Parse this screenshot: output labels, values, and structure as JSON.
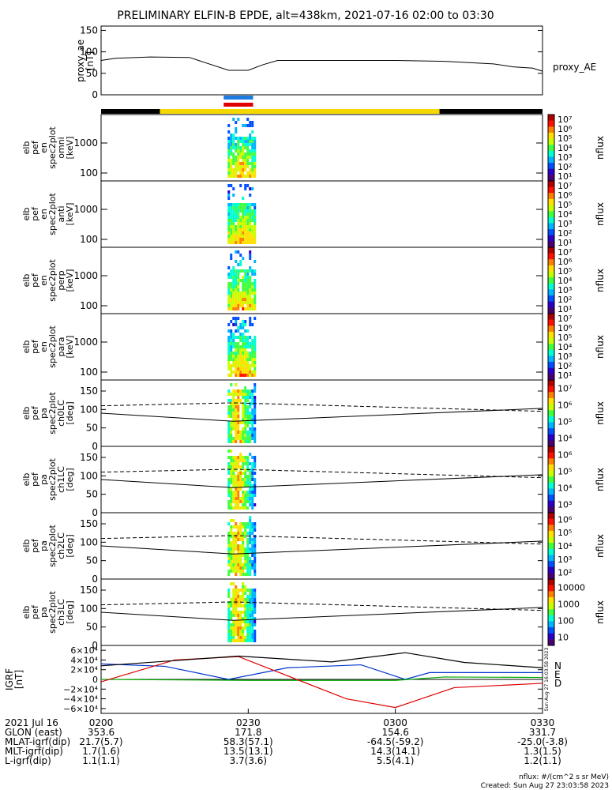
{
  "title": "PRELIMINARY ELFIN-B EPDE, alt=438km, 2021-07-16 02:00 to 03:30",
  "ae_panel": {
    "ylabel": [
      "proxy_ae",
      "[nT]"
    ],
    "yticks": [
      "0",
      "50",
      "100",
      "150"
    ],
    "legend": "proxy_AE"
  },
  "spec_panels": [
    {
      "ylabel": [
        "elb",
        "pef",
        "en",
        "spec2plot",
        "omni",
        "[keV]"
      ],
      "yticks": [
        "100",
        "1000"
      ],
      "cbar_ticks": [
        "10<tspan baseline-shift='super' font-size='7'>1</tspan>",
        "10<tspan baseline-shift='super' font-size='7'>2</tspan>",
        "10<tspan baseline-shift='super' font-size='7'>3</tspan>"
      ]
    },
    {
      "ylabel": [
        "elb",
        "pef",
        "en",
        "spec2plot",
        "anti",
        "[keV]"
      ],
      "yticks": [
        "100",
        "1000"
      ]
    },
    {
      "ylabel": [
        "elb",
        "pef",
        "en",
        "spec2plot",
        "perp",
        "[keV]"
      ],
      "yticks": [
        "100",
        "1000"
      ]
    },
    {
      "ylabel": [
        "elb",
        "pef",
        "en",
        "spec2plot",
        "para",
        "[keV]"
      ],
      "yticks": [
        "100",
        "1000"
      ]
    },
    {
      "ylabel": [
        "elb",
        "pef",
        "pa",
        "spec2plot",
        "ch0LC",
        "[deg]"
      ],
      "yticks": [
        "0",
        "50",
        "100",
        "150"
      ]
    },
    {
      "ylabel": [
        "elb",
        "pef",
        "pa",
        "spec2plot",
        "ch1LC",
        "[deg]"
      ],
      "yticks": [
        "0",
        "50",
        "100",
        "150"
      ]
    },
    {
      "ylabel": [
        "elb",
        "pef",
        "pa",
        "spec2plot",
        "ch2LC",
        "[deg]"
      ],
      "yticks": [
        "0",
        "50",
        "100",
        "150"
      ]
    },
    {
      "ylabel": [
        "elb",
        "pef",
        "pa",
        "spec2plot",
        "ch3LC",
        "[deg]"
      ],
      "yticks": [
        "0",
        "50",
        "100",
        "150"
      ]
    }
  ],
  "colorbars": [
    {
      "label": "nflux",
      "ticks": [
        "10¹",
        "10²",
        "10³",
        "10⁴",
        "10⁵",
        "10⁶",
        "10⁷"
      ]
    },
    {
      "label": "nflux",
      "ticks": [
        "10¹",
        "10²",
        "10³",
        "10⁴",
        "10⁵",
        "10⁶",
        "10⁷"
      ]
    },
    {
      "label": "nflux",
      "ticks": [
        "10¹",
        "10²",
        "10³",
        "10⁴",
        "10⁵",
        "10⁶",
        "10⁷"
      ]
    },
    {
      "label": "nflux",
      "ticks": [
        "10¹",
        "10²",
        "10³",
        "10⁴",
        "10⁵",
        "10⁶",
        "10⁷"
      ]
    },
    {
      "label": "nflux",
      "ticks": [
        "10⁴",
        "10⁵",
        "10⁶",
        "10⁷"
      ]
    },
    {
      "label": "nflux",
      "ticks": [
        "10³",
        "10⁴",
        "10⁵",
        "10⁶"
      ]
    },
    {
      "label": "nflux",
      "ticks": [
        "10²",
        "10³",
        "10⁴",
        "10⁵",
        "10⁶"
      ]
    },
    {
      "label": "nflux",
      "ticks": [
        "10",
        "100",
        "1000",
        "10000"
      ]
    }
  ],
  "igrf_panel": {
    "ylabel": [
      "IGRF",
      "[nT]"
    ],
    "yticks": [
      "−6×10⁴",
      "−4×10⁴",
      "−2×10⁴",
      "0",
      "2×10⁴",
      "4×10⁴",
      "6×10⁴"
    ],
    "legend": [
      "N",
      "E",
      "D"
    ]
  },
  "side_stamp": "Sun Aug 27 16:03:58 2023",
  "footer": {
    "rows": [
      [
        "2021 Jul 16",
        "0200",
        "0230",
        "0300",
        "0330"
      ],
      [
        "GLON (east)",
        "353.6",
        "171.8",
        "154.6",
        "331.7"
      ],
      [
        "MLAT-igrf(dip)",
        "21.7(5.7)",
        "58.3(57.1)",
        "-64.5(-59.2)",
        "-25.0(-3.8)"
      ],
      [
        "MLT-igrf(dip)",
        "1.7(1.6)",
        "13.5(13.1)",
        "14.3(14.1)",
        "1.3(1.5)"
      ],
      [
        "L-igrf(dip)",
        "1.1(1.1)",
        "3.7(3.6)",
        "5.5(4.1)",
        "1.2(1.1)"
      ]
    ],
    "units_note": "nflux: #/(cm^2 s sr MeV)",
    "created": "Created: Sun Aug 27 23:03:58 2023"
  },
  "chart_data": {
    "type": "line",
    "x_range_minutes": [
      0,
      90
    ],
    "x_ticks": [
      "0200",
      "0230",
      "0300",
      "0330"
    ],
    "proxy_ae": {
      "x": [
        0,
        3,
        10,
        18,
        26,
        30,
        33,
        36,
        45,
        60,
        70,
        80,
        84,
        88,
        90
      ],
      "y": [
        80,
        85,
        88,
        87,
        57,
        57,
        70,
        80,
        80,
        80,
        78,
        72,
        65,
        62,
        55
      ],
      "ylim": [
        0,
        160
      ]
    },
    "igrf": {
      "ylim": [
        -70000,
        70000
      ],
      "series": [
        {
          "name": "N",
          "color": "#0033cc",
          "x": [
            0,
            13,
            26,
            38,
            53,
            62,
            67,
            80,
            90
          ],
          "y": [
            32000,
            27000,
            0,
            24000,
            30000,
            0,
            14000,
            14000,
            14000
          ]
        },
        {
          "name": "E",
          "color": "#00aa00",
          "x": [
            0,
            30,
            60,
            70,
            90
          ],
          "y": [
            0,
            -2000,
            -2000,
            5000,
            4000
          ]
        },
        {
          "name": "D",
          "color": "#dd0000",
          "x": [
            0,
            15,
            28,
            50,
            60,
            72,
            90
          ],
          "y": [
            -5000,
            40000,
            47000,
            -40000,
            -58000,
            -17000,
            -8000
          ]
        },
        {
          "name": "",
          "color": "#000000",
          "x": [
            0,
            28,
            47,
            62,
            74,
            90
          ],
          "y": [
            28000,
            48000,
            36000,
            55000,
            35000,
            24000
          ]
        }
      ]
    }
  }
}
